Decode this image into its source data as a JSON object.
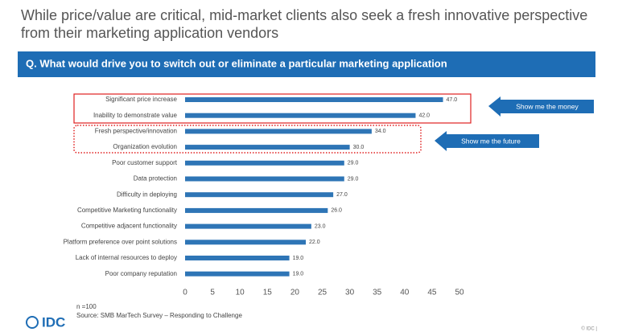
{
  "chart_data": {
    "type": "barh",
    "title": "While price/value are critical, mid-market clients also seek a fresh innovative perspective from their marketing application vendors",
    "subtitle": "Q. What would drive you to switch out or eliminate a particular marketing application",
    "categories": [
      "Significant price increase",
      "Inability to demonstrate value",
      "Fresh perspective/innovation",
      "Organization evolution",
      "Poor customer support",
      "Data protection",
      "Difficulty in deploying",
      "Competitive Marketing functionality",
      "Competitive adjacent functionality",
      "Platform preference over point solutions",
      "Lack of internal resources to deploy",
      "Poor company reputation"
    ],
    "values": [
      47,
      42,
      34,
      30,
      29,
      29,
      27,
      26,
      23,
      22,
      19,
      19
    ],
    "value_labels": [
      "47.0",
      "42.0",
      "34.0",
      "30.0",
      "29.0",
      "29.0",
      "27.0",
      "26.0",
      "23.0",
      "22.0",
      "19.0",
      "19.0"
    ],
    "color": "#2e75b6",
    "xlim": [
      0,
      50
    ],
    "xticks": [
      0,
      5,
      10,
      15,
      20,
      25,
      30,
      35,
      40,
      45,
      50
    ],
    "annotations": [
      "Show me the money",
      "Show me the future"
    ],
    "notes": [
      "n =100",
      "Source: SMB MarTech Survey – Responding to Challenge"
    ],
    "logo": "IDC",
    "footer": "© IDC |"
  }
}
